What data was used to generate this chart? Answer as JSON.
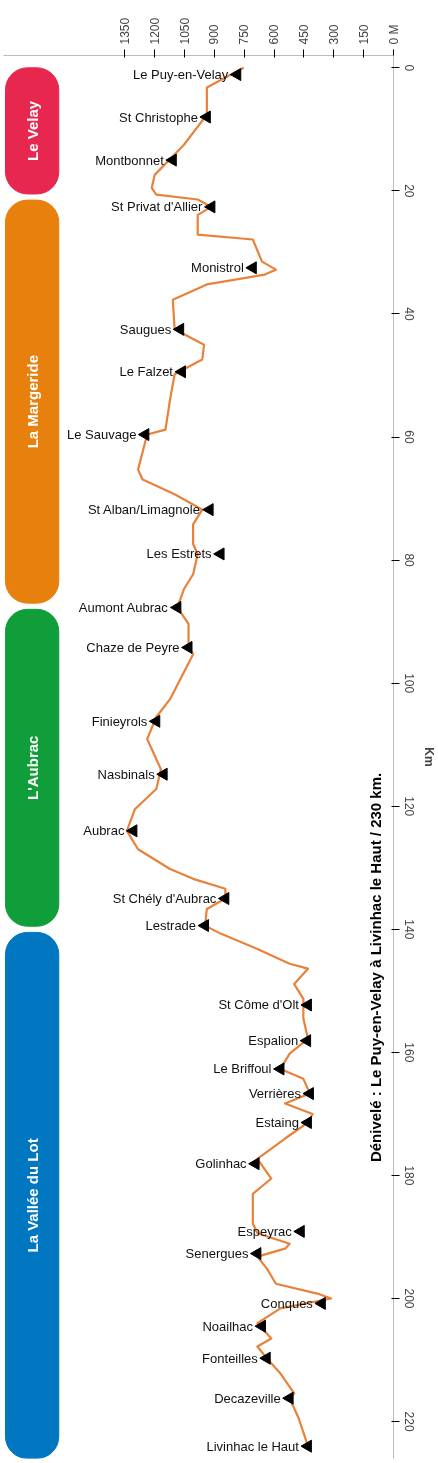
{
  "chart_data": {
    "type": "line",
    "orientation": "horizontal",
    "title": "Dénivelé : Le Puy-en-Velay à Livinhac le Haut / 230 km.",
    "ylabel": "Km",
    "xlim": [
      1960,
      0
    ],
    "ylim": [
      226,
      -2
    ],
    "xticks": [
      1350,
      1200,
      1050,
      900,
      750,
      600,
      450,
      300,
      150,
      {
        "value": 0,
        "label": "0 M"
      }
    ],
    "yticks": [
      0,
      20,
      40,
      60,
      80,
      100,
      120,
      140,
      160,
      180,
      200,
      220
    ],
    "grid": false,
    "series": [
      {
        "color": "#e8823a",
        "x": [
          0,
          3.2,
          7.6,
          12.5,
          17.4,
          19.5,
          20.6,
          21.4,
          22.6,
          23.9,
          27.1,
          27.9,
          31.5,
          32.8,
          33.6,
          35.2,
          37.7,
          42.5,
          45,
          47.4,
          49.8,
          53.9,
          58.8,
          59.6,
          65.3,
          66.9,
          69.3,
          71.8,
          74.2,
          77.4,
          79,
          82.3,
          84.7,
          87.7,
          90.4,
          94.2,
          95.3,
          102.6,
          105.5,
          109.1,
          110.7,
          114,
          117.2,
          120.5,
          124,
          127,
          130.2,
          131.8,
          133.4,
          135,
          136.7,
          139.4,
          140.7,
          143.2,
          145.6,
          146.4,
          148.9,
          151.3,
          154.5,
          157.8,
          160.2,
          162.7,
          164.3,
          166.7,
          168.3,
          170,
          171.4,
          174,
          177.3,
          180.5,
          183,
          187.8,
          189.4,
          191.1,
          191.9,
          193.2,
          195.1,
          197.6,
          199.2,
          200,
          201.6,
          204,
          206.5,
          207.8,
          209.7,
          212.2,
          215.4,
          216.2,
          219.5,
          224
        ],
        "values": [
          753,
          938,
          938,
          1053,
          1200,
          1215,
          1192,
          984,
          915,
          984,
          984,
          707,
          661,
          591,
          647,
          938,
          1109,
          1100,
          952,
          961,
          1100,
          1123,
          1146,
          1238,
          1284,
          1261,
          1100,
          961,
          1007,
          1007,
          984,
          1007,
          1053,
          1086,
          1030,
          1030,
          1007,
          1123,
          1192,
          1238,
          1215,
          1169,
          1192,
          1300,
          1340,
          1284,
          1123,
          1007,
          845,
          845,
          938,
          947,
          869,
          684,
          522,
          430,
          499,
          453,
          453,
          430,
          522,
          568,
          453,
          420,
          545,
          407,
          430,
          545,
          684,
          614,
          707,
          707,
          684,
          522,
          545,
          684,
          637,
          591,
          383,
          314,
          568,
          684,
          614,
          684,
          637,
          568,
          499,
          522,
          476,
          430
        ]
      }
    ],
    "bands": [
      {
        "axis": "y",
        "from": 0,
        "to": 20.5,
        "label": "Le Velay",
        "color": "#e8274f"
      },
      {
        "axis": "y",
        "from": 21.5,
        "to": 87,
        "label": "La Margeride",
        "color": "#e8800e"
      },
      {
        "axis": "y",
        "from": 88,
        "to": 139.5,
        "label": "L'Aubrac",
        "color": "#109e3a"
      },
      {
        "axis": "y",
        "from": 140.5,
        "to": 226,
        "label": "La Vallée du Lot",
        "color": "#0077c0"
      }
    ],
    "annotations": [
      {
        "text": "Le Puy-en-Velay",
        "x": 785,
        "y": 1.1
      },
      {
        "text": "St Christophe",
        "x": 938,
        "y": 8
      },
      {
        "text": "Montbonnet",
        "x": 1109,
        "y": 15
      },
      {
        "text": "St Privat d'Allier",
        "x": 915,
        "y": 22.6
      },
      {
        "text": "Monistrol",
        "x": 707,
        "y": 32.5
      },
      {
        "text": "Saugues",
        "x": 1072,
        "y": 42.5
      },
      {
        "text": "Le Falzet",
        "x": 1063,
        "y": 49.4
      },
      {
        "text": "Le Sauvage",
        "x": 1247,
        "y": 59.6
      },
      {
        "text": "St Alban/Limagnole",
        "x": 924,
        "y": 71.8
      },
      {
        "text": "Les Estrets",
        "x": 869,
        "y": 79
      },
      {
        "text": "Aumont Aubrac",
        "x": 1086,
        "y": 87.7
      },
      {
        "text": "Chaze de Peyre",
        "x": 1030,
        "y": 94.2
      },
      {
        "text": "Finieyrols",
        "x": 1192,
        "y": 106.2
      },
      {
        "text": "Nasbinals",
        "x": 1155,
        "y": 114.8
      },
      {
        "text": "Aubrac",
        "x": 1307,
        "y": 124
      },
      {
        "text": "St Chély d'Aubrac",
        "x": 845,
        "y": 135
      },
      {
        "text": "Lestrade",
        "x": 947,
        "y": 139.4
      },
      {
        "text": "St Côme d'Olt",
        "x": 430,
        "y": 152.3
      },
      {
        "text": "Espalion",
        "x": 434,
        "y": 158.1
      },
      {
        "text": "Le Briffoul",
        "x": 568,
        "y": 162.7
      },
      {
        "text": "Verrières",
        "x": 420,
        "y": 166.7
      },
      {
        "text": "Estaing",
        "x": 430,
        "y": 171.4
      },
      {
        "text": "Golinhac",
        "x": 693,
        "y": 178.1
      },
      {
        "text": "Espeyrac",
        "x": 466,
        "y": 189.1
      },
      {
        "text": "Senergues",
        "x": 684,
        "y": 192.7
      },
      {
        "text": "Conques",
        "x": 360,
        "y": 200.8
      },
      {
        "text": "Noailhac",
        "x": 661,
        "y": 204.5
      },
      {
        "text": "Fonteilles",
        "x": 637,
        "y": 209.7
      },
      {
        "text": "Decazeville",
        "x": 522,
        "y": 216.2
      },
      {
        "text": "Livinhac le Haut",
        "x": 430,
        "y": 224
      }
    ]
  }
}
